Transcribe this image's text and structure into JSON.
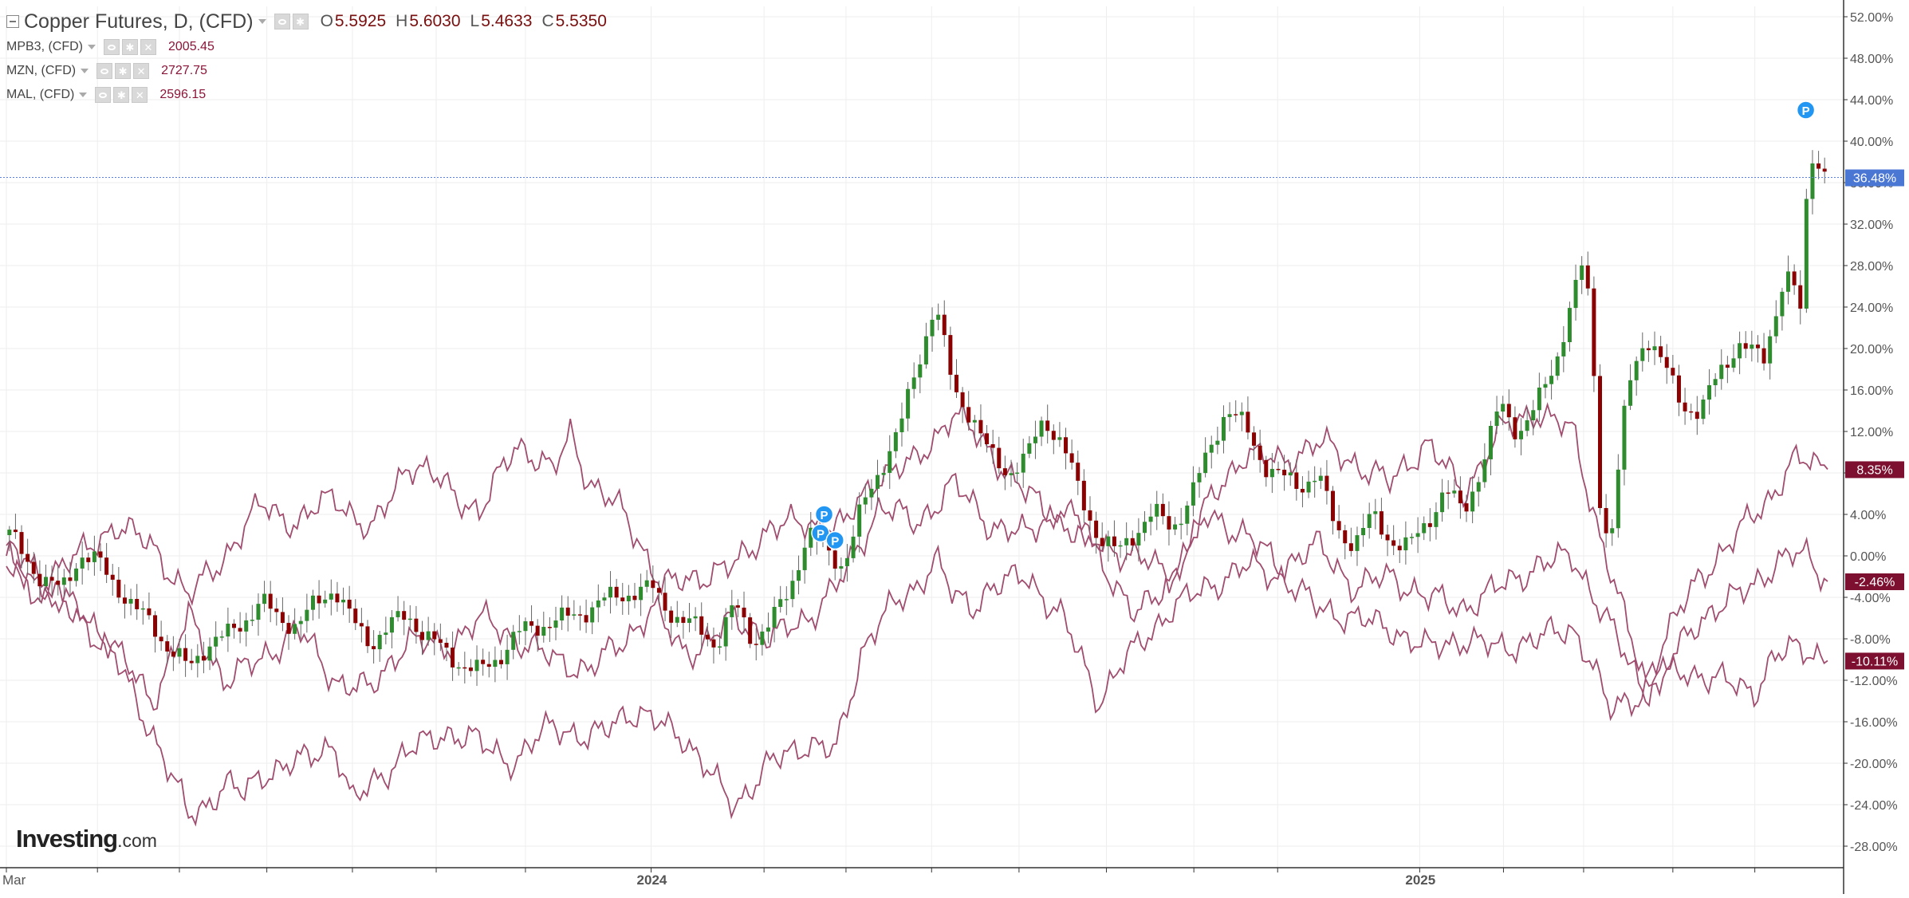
{
  "legend": {
    "main": {
      "title": "Copper Futures, D, (CFD)",
      "o_key": "O",
      "o_val": "5.5925",
      "h_key": "H",
      "h_val": "5.6030",
      "l_key": "L",
      "l_val": "5.4633",
      "c_key": "C",
      "c_val": "5.5350"
    },
    "series": [
      {
        "label": "MPB3, (CFD)",
        "value": "2005.45"
      },
      {
        "label": "MZN, (CFD)",
        "value": "2727.75"
      },
      {
        "label": "MAL, (CFD)",
        "value": "2596.15"
      }
    ]
  },
  "logo": {
    "text": "Investing",
    "suffix": ".com"
  },
  "colors": {
    "up": "#2e8b2e",
    "down": "#8b0000",
    "wick": "#666666",
    "compare_line": "#a04d6f",
    "price_line": "#5b82d6",
    "price_label_bg": "#4a76d4",
    "compare_label_bg": "#7d1030",
    "marker": "#2196f3",
    "grid": "#eeeeee",
    "axis_text": "#555555"
  },
  "chart_data": {
    "type": "line",
    "y_scale": "percent change",
    "ylim": [
      -30,
      53
    ],
    "yticks": [
      "52.00%",
      "48.00%",
      "44.00%",
      "40.00%",
      "36.00%",
      "32.00%",
      "28.00%",
      "24.00%",
      "20.00%",
      "16.00%",
      "12.00%",
      "8.00%",
      "4.00%",
      "0.00%",
      "-4.00%",
      "-8.00%",
      "-12.00%",
      "-16.00%",
      "-20.00%",
      "-24.00%",
      "-28.00%"
    ],
    "xtick_labels": [
      {
        "label": "Mar",
        "t": 0
      },
      {
        "label": "2024",
        "t": 0.354
      },
      {
        "label": "2025",
        "t": 0.776
      }
    ],
    "grid": true,
    "legend_position": "top-left",
    "main_series": {
      "name": "Copper Futures, D, (CFD)",
      "style": "candlestick",
      "last_value_label": "36.48%",
      "points": [
        [
          0.0,
          2
        ],
        [
          0.01,
          0
        ],
        [
          0.02,
          -2
        ],
        [
          0.03,
          -3
        ],
        [
          0.04,
          0
        ],
        [
          0.05,
          -1
        ],
        [
          0.06,
          -3
        ],
        [
          0.07,
          -5
        ],
        [
          0.08,
          -6
        ],
        [
          0.09,
          -9
        ],
        [
          0.1,
          -11
        ],
        [
          0.11,
          -9
        ],
        [
          0.12,
          -8
        ],
        [
          0.13,
          -6
        ],
        [
          0.14,
          -4
        ],
        [
          0.15,
          -6
        ],
        [
          0.16,
          -7
        ],
        [
          0.17,
          -5
        ],
        [
          0.18,
          -3
        ],
        [
          0.19,
          -6
        ],
        [
          0.2,
          -8
        ],
        [
          0.21,
          -7
        ],
        [
          0.22,
          -6
        ],
        [
          0.23,
          -8
        ],
        [
          0.24,
          -9
        ],
        [
          0.25,
          -10
        ],
        [
          0.26,
          -11
        ],
        [
          0.27,
          -10
        ],
        [
          0.28,
          -8
        ],
        [
          0.3,
          -6
        ],
        [
          0.32,
          -5
        ],
        [
          0.34,
          -4
        ],
        [
          0.355,
          -3
        ],
        [
          0.37,
          -6
        ],
        [
          0.38,
          -7
        ],
        [
          0.39,
          -9
        ],
        [
          0.4,
          -5
        ],
        [
          0.41,
          -8
        ],
        [
          0.42,
          -6
        ],
        [
          0.43,
          -3
        ],
        [
          0.44,
          2
        ],
        [
          0.45,
          0
        ],
        [
          0.46,
          -1
        ],
        [
          0.47,
          5
        ],
        [
          0.48,
          9
        ],
        [
          0.49,
          12
        ],
        [
          0.5,
          18
        ],
        [
          0.51,
          24
        ],
        [
          0.515,
          20
        ],
        [
          0.52,
          16
        ],
        [
          0.53,
          14
        ],
        [
          0.54,
          10
        ],
        [
          0.55,
          8
        ],
        [
          0.56,
          9
        ],
        [
          0.57,
          13
        ],
        [
          0.58,
          11
        ],
        [
          0.59,
          6
        ],
        [
          0.6,
          2
        ],
        [
          0.61,
          0
        ],
        [
          0.62,
          2
        ],
        [
          0.63,
          4
        ],
        [
          0.64,
          3
        ],
        [
          0.65,
          6
        ],
        [
          0.66,
          10
        ],
        [
          0.67,
          14
        ],
        [
          0.68,
          12
        ],
        [
          0.69,
          9
        ],
        [
          0.7,
          8
        ],
        [
          0.71,
          7
        ],
        [
          0.72,
          8
        ],
        [
          0.73,
          2
        ],
        [
          0.74,
          1
        ],
        [
          0.75,
          4
        ],
        [
          0.76,
          2
        ],
        [
          0.77,
          1
        ],
        [
          0.78,
          3
        ],
        [
          0.79,
          6
        ],
        [
          0.8,
          4
        ],
        [
          0.81,
          9
        ],
        [
          0.82,
          15
        ],
        [
          0.83,
          12
        ],
        [
          0.84,
          14
        ],
        [
          0.85,
          18
        ],
        [
          0.86,
          25
        ],
        [
          0.865,
          28
        ],
        [
          0.87,
          24
        ],
        [
          0.875,
          6
        ],
        [
          0.88,
          1
        ],
        [
          0.885,
          8
        ],
        [
          0.89,
          16
        ],
        [
          0.9,
          21
        ],
        [
          0.91,
          18
        ],
        [
          0.92,
          15
        ],
        [
          0.93,
          14
        ],
        [
          0.94,
          18
        ],
        [
          0.95,
          20
        ],
        [
          0.96,
          19
        ],
        [
          0.965,
          19
        ],
        [
          0.975,
          26
        ],
        [
          0.98,
          27
        ],
        [
          0.985,
          24
        ],
        [
          0.99,
          40
        ],
        [
          0.995,
          38
        ],
        [
          1.0,
          36.5
        ]
      ]
    },
    "compare_series": [
      {
        "name": "MPB3, (CFD)",
        "last_value_label": "8.35%",
        "points": [
          [
            0.0,
            1
          ],
          [
            0.02,
            -2
          ],
          [
            0.04,
            0
          ],
          [
            0.06,
            3
          ],
          [
            0.08,
            1
          ],
          [
            0.1,
            -4
          ],
          [
            0.12,
            0
          ],
          [
            0.14,
            5
          ],
          [
            0.16,
            3
          ],
          [
            0.18,
            6
          ],
          [
            0.2,
            2
          ],
          [
            0.22,
            9
          ],
          [
            0.24,
            7
          ],
          [
            0.26,
            4
          ],
          [
            0.28,
            11
          ],
          [
            0.3,
            8
          ],
          [
            0.31,
            12
          ],
          [
            0.32,
            7
          ],
          [
            0.34,
            4
          ],
          [
            0.36,
            -3
          ],
          [
            0.38,
            -2
          ],
          [
            0.4,
            -1
          ],
          [
            0.42,
            3
          ],
          [
            0.44,
            3
          ],
          [
            0.46,
            3
          ],
          [
            0.48,
            8
          ],
          [
            0.5,
            9
          ],
          [
            0.52,
            14
          ],
          [
            0.54,
            10
          ],
          [
            0.56,
            6
          ],
          [
            0.58,
            3
          ],
          [
            0.6,
            1
          ],
          [
            0.62,
            0
          ],
          [
            0.64,
            -2
          ],
          [
            0.66,
            5
          ],
          [
            0.68,
            10
          ],
          [
            0.7,
            9
          ],
          [
            0.72,
            11
          ],
          [
            0.74,
            9
          ],
          [
            0.76,
            7
          ],
          [
            0.78,
            11
          ],
          [
            0.8,
            6
          ],
          [
            0.82,
            12
          ],
          [
            0.84,
            14
          ],
          [
            0.86,
            12
          ],
          [
            0.875,
            2
          ],
          [
            0.89,
            -7
          ],
          [
            0.9,
            -12
          ],
          [
            0.91,
            -8
          ],
          [
            0.93,
            -2
          ],
          [
            0.95,
            2
          ],
          [
            0.97,
            6
          ],
          [
            0.98,
            9
          ],
          [
            0.99,
            9
          ],
          [
            1.0,
            8.35
          ]
        ]
      },
      {
        "name": "MZN, (CFD)",
        "last_value_label": "-2.46%",
        "points": [
          [
            0.0,
            -1
          ],
          [
            0.02,
            -4
          ],
          [
            0.04,
            -5
          ],
          [
            0.06,
            -9
          ],
          [
            0.08,
            -14
          ],
          [
            0.1,
            -6
          ],
          [
            0.12,
            -12
          ],
          [
            0.14,
            -10
          ],
          [
            0.16,
            -7
          ],
          [
            0.18,
            -12
          ],
          [
            0.2,
            -13
          ],
          [
            0.22,
            -8
          ],
          [
            0.24,
            -9
          ],
          [
            0.26,
            -6
          ],
          [
            0.28,
            -8
          ],
          [
            0.3,
            -10
          ],
          [
            0.32,
            -11
          ],
          [
            0.34,
            -8
          ],
          [
            0.355,
            -5
          ],
          [
            0.37,
            -9
          ],
          [
            0.38,
            -9
          ],
          [
            0.4,
            -6
          ],
          [
            0.42,
            -8
          ],
          [
            0.44,
            -6
          ],
          [
            0.46,
            -2
          ],
          [
            0.48,
            5
          ],
          [
            0.5,
            3
          ],
          [
            0.52,
            7
          ],
          [
            0.54,
            3
          ],
          [
            0.56,
            2
          ],
          [
            0.58,
            5
          ],
          [
            0.6,
            0
          ],
          [
            0.62,
            -6
          ],
          [
            0.64,
            -2
          ],
          [
            0.66,
            4
          ],
          [
            0.68,
            2
          ],
          [
            0.7,
            -1
          ],
          [
            0.72,
            1
          ],
          [
            0.74,
            -3
          ],
          [
            0.76,
            -2
          ],
          [
            0.78,
            -4
          ],
          [
            0.8,
            -5
          ],
          [
            0.82,
            -3
          ],
          [
            0.84,
            -1
          ],
          [
            0.86,
            0
          ],
          [
            0.875,
            -5
          ],
          [
            0.89,
            -10
          ],
          [
            0.9,
            -13
          ],
          [
            0.91,
            -11
          ],
          [
            0.93,
            -6
          ],
          [
            0.95,
            -4
          ],
          [
            0.97,
            -1
          ],
          [
            0.98,
            0
          ],
          [
            0.99,
            0
          ],
          [
            1.0,
            -2.46
          ]
        ]
      },
      {
        "name": "MAL, (CFD)",
        "last_value_label": "-10.11%",
        "points": [
          [
            0.0,
            0
          ],
          [
            0.02,
            -3
          ],
          [
            0.04,
            -6
          ],
          [
            0.06,
            -10
          ],
          [
            0.08,
            -17
          ],
          [
            0.09,
            -21
          ],
          [
            0.1,
            -25
          ],
          [
            0.11,
            -24
          ],
          [
            0.12,
            -22
          ],
          [
            0.13,
            -23
          ],
          [
            0.14,
            -21
          ],
          [
            0.16,
            -20
          ],
          [
            0.18,
            -18
          ],
          [
            0.19,
            -24
          ],
          [
            0.2,
            -22
          ],
          [
            0.22,
            -19
          ],
          [
            0.24,
            -17
          ],
          [
            0.26,
            -18
          ],
          [
            0.28,
            -20
          ],
          [
            0.3,
            -16
          ],
          [
            0.32,
            -18
          ],
          [
            0.34,
            -15
          ],
          [
            0.355,
            -16
          ],
          [
            0.37,
            -17
          ],
          [
            0.39,
            -22
          ],
          [
            0.4,
            -24
          ],
          [
            0.42,
            -20
          ],
          [
            0.44,
            -18
          ],
          [
            0.455,
            -19
          ],
          [
            0.46,
            -16
          ],
          [
            0.47,
            -9
          ],
          [
            0.48,
            -6
          ],
          [
            0.5,
            -3
          ],
          [
            0.51,
            0
          ],
          [
            0.52,
            -4
          ],
          [
            0.53,
            -5
          ],
          [
            0.54,
            -3
          ],
          [
            0.56,
            -2
          ],
          [
            0.58,
            -6
          ],
          [
            0.6,
            -14
          ],
          [
            0.61,
            -11
          ],
          [
            0.62,
            -9
          ],
          [
            0.64,
            -5
          ],
          [
            0.66,
            -3
          ],
          [
            0.68,
            -1
          ],
          [
            0.7,
            -2
          ],
          [
            0.72,
            -5
          ],
          [
            0.74,
            -6
          ],
          [
            0.76,
            -7
          ],
          [
            0.78,
            -9
          ],
          [
            0.8,
            -8
          ],
          [
            0.82,
            -9
          ],
          [
            0.84,
            -8
          ],
          [
            0.86,
            -7
          ],
          [
            0.87,
            -10
          ],
          [
            0.88,
            -15
          ],
          [
            0.89,
            -14
          ],
          [
            0.9,
            -13
          ],
          [
            0.92,
            -11
          ],
          [
            0.94,
            -12
          ],
          [
            0.96,
            -13
          ],
          [
            0.97,
            -10
          ],
          [
            0.98,
            -9
          ],
          [
            0.99,
            -9
          ],
          [
            1.0,
            -10.11
          ]
        ]
      }
    ],
    "markers": [
      {
        "label": "P",
        "t": 0.449,
        "y": 4
      },
      {
        "label": "P",
        "t": 0.447,
        "y": 2.2
      },
      {
        "label": "P",
        "t": 0.455,
        "y": 1.5
      },
      {
        "label": "P",
        "t": 0.988,
        "y": 43
      }
    ]
  }
}
